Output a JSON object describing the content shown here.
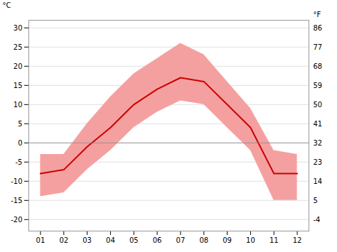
{
  "chart_data": {
    "type": "line",
    "x": [
      1,
      2,
      3,
      4,
      5,
      6,
      7,
      8,
      9,
      10,
      11,
      12
    ],
    "xlim": [
      0.5,
      12.5
    ],
    "xticks": [
      {
        "value": 1,
        "label": "01"
      },
      {
        "value": 2,
        "label": "02"
      },
      {
        "value": 3,
        "label": "03"
      },
      {
        "value": 4,
        "label": "04"
      },
      {
        "value": 5,
        "label": "05"
      },
      {
        "value": 6,
        "label": "06"
      },
      {
        "value": 7,
        "label": "07"
      },
      {
        "value": 8,
        "label": "08"
      },
      {
        "value": 9,
        "label": "09"
      },
      {
        "value": 10,
        "label": "10"
      },
      {
        "value": 11,
        "label": "11"
      },
      {
        "value": 12,
        "label": "12"
      }
    ],
    "ylim": [
      -23,
      32
    ],
    "yticks": [
      30,
      25,
      20,
      15,
      10,
      5,
      0,
      -5,
      -10,
      -15,
      -20
    ],
    "y2lim": [
      -9.4,
      89.6
    ],
    "y2ticks": [
      86,
      77,
      68,
      59,
      50,
      41,
      32,
      23,
      14,
      5,
      -4
    ],
    "ylabel": "°C",
    "y2label": "°F",
    "grid": true,
    "series": [
      {
        "type": "area",
        "color": "#f5a0a0",
        "values": [
          -3,
          -3,
          5,
          12,
          18,
          22,
          26,
          23,
          16,
          9,
          -2,
          -3
        ],
        "lower": [
          -14,
          -13,
          -7,
          -2,
          4,
          8,
          11,
          10,
          4,
          -2,
          -15,
          -15
        ]
      },
      {
        "type": "line",
        "color": "#cc0000",
        "values": [
          -8,
          -7,
          -1,
          4,
          10,
          14,
          17,
          16,
          10,
          4,
          -8,
          -8
        ]
      }
    ]
  }
}
